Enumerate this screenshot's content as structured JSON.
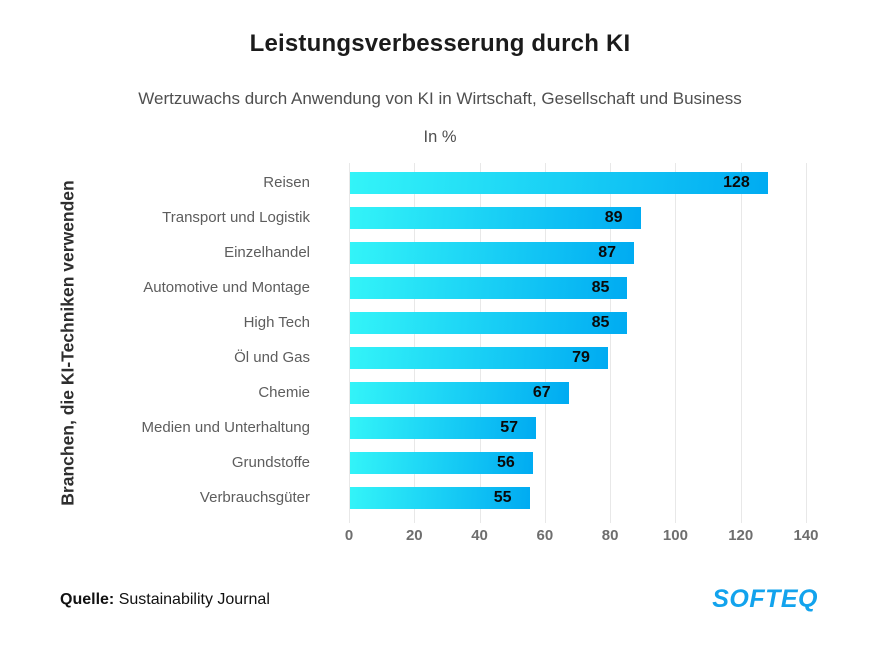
{
  "header": {
    "title": "Leistungsverbesserung durch KI",
    "subtitle": "Wertzuwachs durch Anwendung von KI in Wirtschaft, Gesellschaft und Business",
    "unit": "In %"
  },
  "chart_data": {
    "type": "bar",
    "orientation": "horizontal",
    "title": "Leistungsverbesserung durch KI",
    "subtitle": "Wertzuwachs durch Anwendung von KI in Wirtschaft, Gesellschaft und Business",
    "unit": "In %",
    "ylabel": "Branchen, die KI-Techniken verwenden",
    "xlabel": "",
    "categories": [
      "Reisen",
      "Transport und Logistik",
      "Einzelhandel",
      "Automotive und Montage",
      "High Tech",
      "Öl und Gas",
      "Chemie",
      "Medien und Unterhaltung",
      "Grundstoffe",
      "Verbrauchsgüter"
    ],
    "values": [
      128,
      89,
      87,
      85,
      85,
      79,
      67,
      57,
      56,
      55
    ],
    "xlim": [
      0,
      140
    ],
    "xticks": [
      0,
      20,
      40,
      60,
      80,
      100,
      120,
      140
    ],
    "grid": true,
    "legend": "none",
    "bar_gradient": [
      "#33f4f8",
      "#00abf2"
    ],
    "value_label_color": "#0a0a0a"
  },
  "footer": {
    "source_label": "Quelle:",
    "source_value": "Sustainability Journal",
    "logo_text": "SOFTEQ",
    "logo_color": "#12a3ed"
  }
}
